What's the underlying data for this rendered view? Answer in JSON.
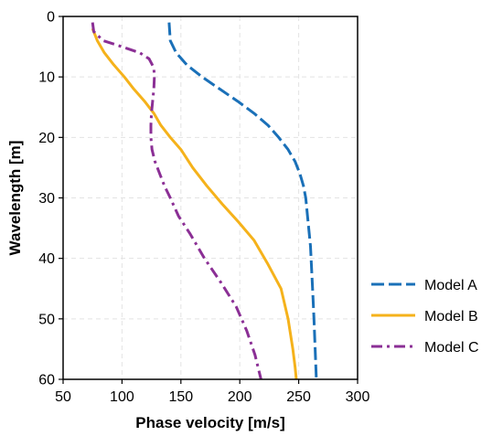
{
  "chart_data": {
    "type": "line",
    "xlabel": "Phase velocity [m/s]",
    "ylabel": "Wavelength [m]",
    "xlim": [
      50,
      300
    ],
    "ylim": [
      0,
      60
    ],
    "y_inverted": true,
    "xticks": [
      50,
      100,
      150,
      200,
      250,
      300
    ],
    "yticks": [
      0,
      10,
      20,
      30,
      40,
      50,
      60
    ],
    "grid": true,
    "legend_position": "right",
    "series": [
      {
        "name": "Model A",
        "color": "#1a70b8",
        "dash": "long-dash",
        "points": [
          [
            140,
            1
          ],
          [
            141,
            4
          ],
          [
            146,
            6
          ],
          [
            155,
            8
          ],
          [
            168,
            10
          ],
          [
            183,
            12
          ],
          [
            198,
            14
          ],
          [
            212,
            16
          ],
          [
            224,
            18
          ],
          [
            233,
            20
          ],
          [
            241,
            22
          ],
          [
            247,
            24
          ],
          [
            251,
            26
          ],
          [
            254,
            28
          ],
          [
            256,
            30
          ],
          [
            258,
            34
          ],
          [
            260,
            38
          ],
          [
            261,
            42
          ],
          [
            262,
            46
          ],
          [
            263,
            50
          ],
          [
            264,
            55
          ],
          [
            265,
            60
          ]
        ]
      },
      {
        "name": "Model B",
        "color": "#f5b21b",
        "dash": "solid",
        "points": [
          [
            75,
            2
          ],
          [
            79,
            4
          ],
          [
            85,
            6
          ],
          [
            93,
            8
          ],
          [
            102,
            10
          ],
          [
            110,
            12
          ],
          [
            119,
            14
          ],
          [
            127,
            16
          ],
          [
            133,
            18
          ],
          [
            141,
            20
          ],
          [
            150,
            22
          ],
          [
            160,
            25
          ],
          [
            172,
            28
          ],
          [
            185,
            31
          ],
          [
            199,
            34
          ],
          [
            212,
            37
          ],
          [
            224,
            41
          ],
          [
            235,
            45
          ],
          [
            241,
            50
          ],
          [
            245,
            55
          ],
          [
            247,
            58
          ],
          [
            248,
            60
          ]
        ]
      },
      {
        "name": "Model C",
        "color": "#8b2f95",
        "dash": "dash-dot",
        "points": [
          [
            75,
            1
          ],
          [
            76,
            2.5
          ],
          [
            84,
            4
          ],
          [
            100,
            5
          ],
          [
            115,
            6
          ],
          [
            123,
            7
          ],
          [
            127,
            8.5
          ],
          [
            127.5,
            10
          ],
          [
            127,
            12
          ],
          [
            126,
            14
          ],
          [
            125,
            16
          ],
          [
            124.5,
            18
          ],
          [
            124.5,
            20
          ],
          [
            125.5,
            22
          ],
          [
            128,
            24
          ],
          [
            132,
            26
          ],
          [
            136,
            28
          ],
          [
            141,
            30
          ],
          [
            148,
            33
          ],
          [
            158,
            36
          ],
          [
            170,
            40
          ],
          [
            184,
            44
          ],
          [
            197,
            48
          ],
          [
            206,
            52
          ],
          [
            213,
            56
          ],
          [
            218,
            60
          ]
        ]
      }
    ]
  }
}
